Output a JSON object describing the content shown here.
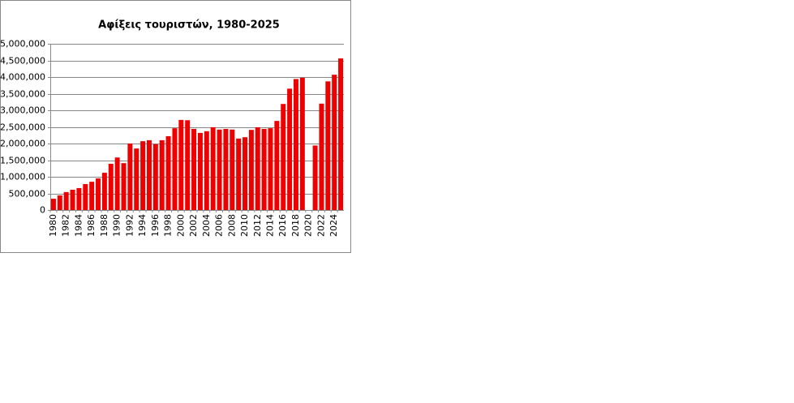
{
  "chart_data": {
    "type": "bar",
    "title": "Αφίξεις τουριστών, 1980-2025",
    "categories": [
      "1980",
      null,
      "1982",
      null,
      "1984",
      null,
      "1986",
      null,
      "1988",
      null,
      "1990",
      null,
      "1992",
      null,
      "1994",
      null,
      "1996",
      null,
      "1998",
      null,
      "2000",
      null,
      "2002",
      null,
      "2004",
      null,
      "2006",
      null,
      "2008",
      null,
      "2010",
      null,
      "2012",
      null,
      "2014",
      null,
      "2016",
      null,
      "2018",
      null,
      "2020",
      null,
      "2022",
      null,
      "2024",
      null
    ],
    "values": [
      340000,
      440000,
      540000,
      610000,
      660000,
      780000,
      850000,
      950000,
      1120000,
      1390000,
      1580000,
      1410000,
      2000000,
      1850000,
      2070000,
      2100000,
      1980000,
      2100000,
      2220000,
      2460000,
      2710000,
      2700000,
      2440000,
      2320000,
      2370000,
      2490000,
      2420000,
      2440000,
      2420000,
      2150000,
      2190000,
      2410000,
      2490000,
      2440000,
      2460000,
      2680000,
      3190000,
      3650000,
      3940000,
      3980000,
      null,
      1940000,
      3200000,
      3870000,
      4070000,
      4560000
    ],
    "color": "#ee0000",
    "ylim": [
      0,
      5000000
    ],
    "yticks": [
      0,
      {
        "value": 500000,
        "label": "500,000"
      },
      {
        "value": 1000000,
        "label": "1,000,000"
      },
      {
        "value": 1500000,
        "label": "1,500,000"
      },
      {
        "value": 2000000,
        "label": "2,000,000"
      },
      {
        "value": 2500000,
        "label": "2,500,000"
      },
      {
        "value": 3000000,
        "label": "3,000,000"
      },
      {
        "value": 3500000,
        "label": "3,500,000"
      },
      {
        "value": 4000000,
        "label": "4,000,000"
      },
      {
        "value": 4500000,
        "label": "4,500,000"
      },
      {
        "value": 5000000,
        "label": "5,000,000"
      }
    ],
    "grid": true
  }
}
